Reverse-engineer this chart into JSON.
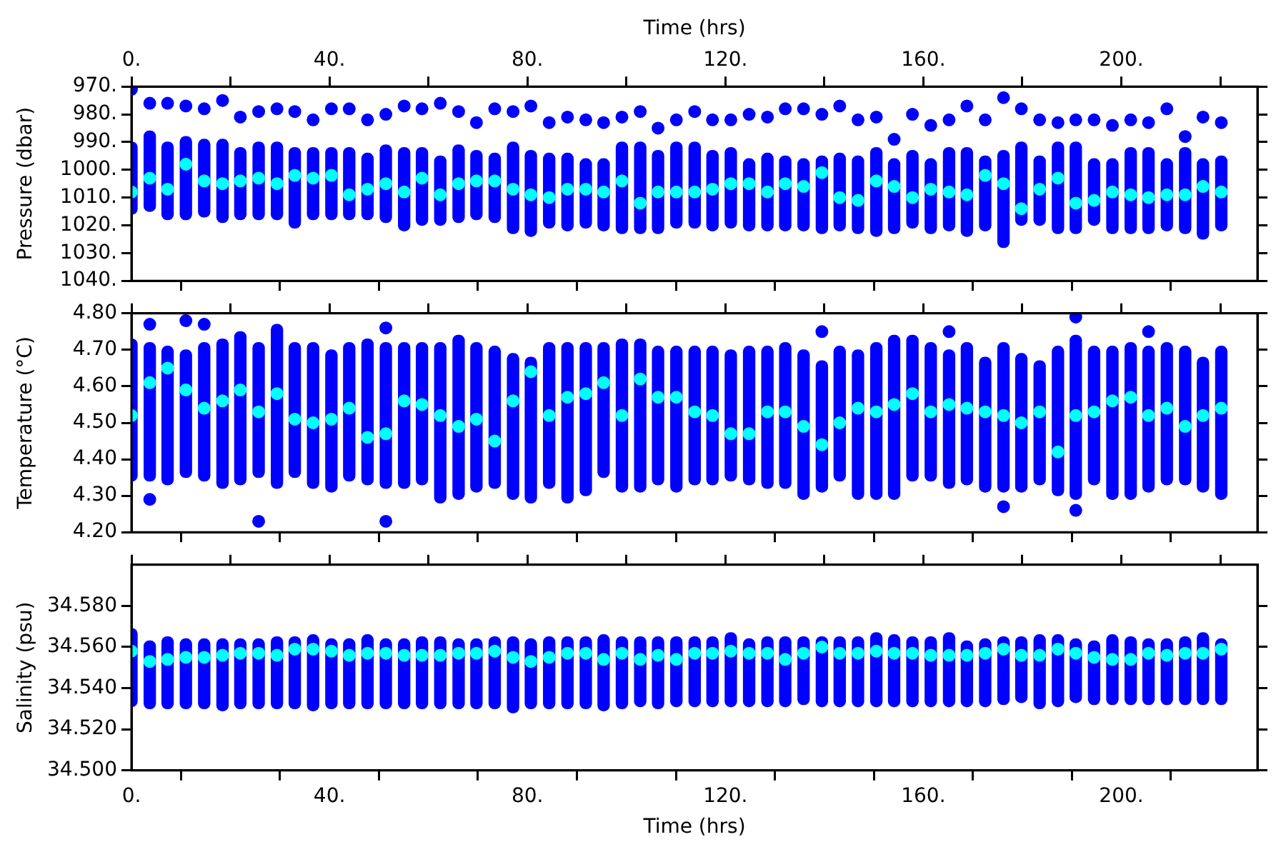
{
  "chart_data": [
    {
      "type": "scatter",
      "ylabel": "Pressure (dbar)",
      "x2label": "Time (hrs)",
      "marker": "circle",
      "tick_labels": "y",
      "xlim": [
        0,
        227.5
      ],
      "xticks": [
        {
          "value": 0,
          "label": null
        },
        {
          "value": 20,
          "label": null
        },
        {
          "value": 40,
          "label": null
        },
        {
          "value": 60,
          "label": null
        },
        {
          "value": 80,
          "label": null
        },
        {
          "value": 100,
          "label": null
        },
        {
          "value": 120,
          "label": null
        },
        {
          "value": 140,
          "label": null
        },
        {
          "value": 160,
          "label": null
        },
        {
          "value": 180,
          "label": null
        },
        {
          "value": 200,
          "label": null
        },
        {
          "value": 220,
          "label": null
        }
      ],
      "x2lim": [
        0,
        227.5
      ],
      "x2ticks": [
        {
          "value": 0,
          "label": "0."
        },
        {
          "value": 20,
          "label": null
        },
        {
          "value": 40,
          "label": "40."
        },
        {
          "value": 60,
          "label": null
        },
        {
          "value": 80,
          "label": "80."
        },
        {
          "value": 100,
          "label": null
        },
        {
          "value": 120,
          "label": "120."
        },
        {
          "value": 140,
          "label": null
        },
        {
          "value": 160,
          "label": "160."
        },
        {
          "value": 180,
          "label": null
        },
        {
          "value": 200,
          "label": "200."
        },
        {
          "value": 220,
          "label": null
        }
      ],
      "ylim": [
        1040,
        970
      ],
      "yticks": [
        {
          "value": 970,
          "label": "970."
        },
        {
          "value": 980,
          "label": "980."
        },
        {
          "value": 990,
          "label": "990."
        },
        {
          "value": 1000,
          "label": "1000."
        },
        {
          "value": 1010,
          "label": "1010."
        },
        {
          "value": 1020,
          "label": "1020."
        },
        {
          "value": 1030,
          "label": "1030."
        },
        {
          "value": 1040,
          "label": "1040."
        }
      ],
      "x": [
        0,
        3.7,
        7.3,
        11.0,
        14.7,
        18.4,
        22.0,
        25.7,
        29.4,
        33.0,
        36.7,
        40.4,
        44.0,
        47.7,
        51.4,
        55.1,
        58.7,
        62.4,
        66.1,
        69.7,
        73.4,
        77.1,
        80.7,
        84.4,
        88.1,
        91.8,
        95.4,
        99.1,
        102.8,
        106.4,
        110.1,
        113.8,
        117.4,
        121.1,
        124.8,
        128.5,
        132.1,
        135.8,
        139.5,
        143.1,
        146.8,
        150.5,
        154.1,
        157.8,
        161.5,
        165.2,
        168.8,
        172.5,
        176.2,
        179.8,
        183.5,
        187.2,
        190.8,
        194.5,
        198.2,
        201.9,
        205.5,
        209.2,
        212.9,
        216.5,
        220.2
      ],
      "series": [
        {
          "type": "bar",
          "color": "#0000ff",
          "base": [
            990,
            986,
            990,
            988,
            989,
            989,
            992,
            990,
            990,
            992,
            992,
            992,
            992,
            994,
            991,
            992,
            992,
            995,
            991,
            993,
            994,
            990,
            993,
            994,
            994,
            996,
            996,
            990,
            990,
            993,
            990,
            990,
            993,
            992,
            996,
            994,
            995,
            996,
            995,
            994,
            995,
            992,
            996,
            993,
            996,
            992,
            992,
            995,
            993,
            990,
            995,
            990,
            990,
            996,
            996,
            992,
            992,
            996,
            992,
            996,
            995
          ],
          "values": [
            26,
            29,
            28,
            30,
            28,
            30,
            26,
            28,
            28,
            29,
            26,
            26,
            26,
            24,
            28,
            30,
            28,
            25,
            28,
            25,
            25,
            33,
            31,
            27,
            28,
            25,
            26,
            33,
            33,
            30,
            31,
            31,
            29,
            29,
            26,
            28,
            27,
            26,
            28,
            28,
            28,
            32,
            27,
            28,
            27,
            30,
            32,
            27,
            35,
            30,
            25,
            33,
            33,
            24,
            27,
            31,
            31,
            26,
            31,
            29,
            27
          ]
        },
        {
          "type": "scatter",
          "color": "#0000ff",
          "values": [
            971,
            976,
            976,
            977,
            978,
            975,
            981,
            979,
            978,
            979,
            982,
            978,
            978,
            982,
            980,
            977,
            978,
            976,
            979,
            983,
            978,
            979,
            977,
            983,
            981,
            982,
            983,
            981,
            979,
            985,
            982,
            979,
            982,
            982,
            980,
            981,
            978,
            978,
            980,
            977,
            982,
            981,
            989,
            980,
            984,
            982,
            977,
            982,
            974,
            978,
            982,
            983,
            982,
            982,
            984,
            982,
            983,
            978,
            988,
            981,
            983
          ]
        },
        {
          "type": "scatter",
          "color": "#00ffff",
          "values": [
            1008,
            1003,
            1007,
            998,
            1004,
            1005,
            1004,
            1003,
            1005,
            1002,
            1003,
            1002,
            1009,
            1007,
            1005,
            1008,
            1003,
            1009,
            1005,
            1004,
            1004,
            1007,
            1009,
            1010,
            1007,
            1007,
            1008,
            1004,
            1012,
            1008,
            1008,
            1008,
            1007,
            1005,
            1005,
            1008,
            1005,
            1006,
            1001,
            1010,
            1011,
            1004,
            1006,
            1010,
            1007,
            1008,
            1009,
            1002,
            1005,
            1014,
            1007,
            1003,
            1012,
            1011,
            1008,
            1009,
            1010,
            1009,
            1009,
            1006,
            1008
          ]
        }
      ]
    },
    {
      "type": "scatter",
      "ylabel": "Temperature (°C)",
      "marker": "circle",
      "tick_labels": "y",
      "xlim": [
        0,
        227.5
      ],
      "xticks": [
        {
          "value": 0,
          "label": null
        },
        {
          "value": 20,
          "label": null
        },
        {
          "value": 40,
          "label": null
        },
        {
          "value": 60,
          "label": null
        },
        {
          "value": 80,
          "label": null
        },
        {
          "value": 100,
          "label": null
        },
        {
          "value": 120,
          "label": null
        },
        {
          "value": 140,
          "label": null
        },
        {
          "value": 160,
          "label": null
        },
        {
          "value": 180,
          "label": null
        },
        {
          "value": 200,
          "label": null
        },
        {
          "value": 220,
          "label": null
        }
      ],
      "ylim": [
        4.2,
        4.8
      ],
      "yticks": [
        {
          "value": 4.2,
          "label": "4.20"
        },
        {
          "value": 4.3,
          "label": "4.30"
        },
        {
          "value": 4.4,
          "label": "4.40"
        },
        {
          "value": 4.5,
          "label": "4.50"
        },
        {
          "value": 4.6,
          "label": "4.60"
        },
        {
          "value": 4.7,
          "label": "4.70"
        },
        {
          "value": 4.8,
          "label": "4.80"
        }
      ],
      "x": [
        0,
        3.7,
        7.3,
        11.0,
        14.7,
        18.4,
        22.0,
        25.7,
        29.4,
        33.0,
        36.7,
        40.4,
        44.0,
        47.7,
        51.4,
        55.1,
        58.7,
        62.4,
        66.1,
        69.7,
        73.4,
        77.1,
        80.7,
        84.4,
        88.1,
        91.8,
        95.4,
        99.1,
        102.8,
        106.4,
        110.1,
        113.8,
        117.4,
        121.1,
        124.8,
        128.5,
        132.1,
        135.8,
        139.5,
        143.1,
        146.8,
        150.5,
        154.1,
        157.8,
        161.5,
        165.2,
        168.8,
        172.5,
        176.2,
        179.8,
        183.5,
        187.2,
        190.8,
        194.5,
        198.2,
        201.9,
        205.5,
        209.2,
        212.9,
        216.5,
        220.2
      ],
      "series": [
        {
          "type": "bar",
          "color": "#0000ff",
          "base": [
            4.34,
            4.34,
            4.33,
            4.35,
            4.34,
            4.32,
            4.33,
            4.35,
            4.32,
            4.35,
            4.32,
            4.31,
            4.34,
            4.33,
            4.32,
            4.32,
            4.33,
            4.28,
            4.29,
            4.31,
            4.32,
            4.29,
            4.28,
            4.32,
            4.28,
            4.3,
            4.35,
            4.31,
            4.31,
            4.33,
            4.31,
            4.33,
            4.33,
            4.34,
            4.33,
            4.32,
            4.32,
            4.29,
            4.31,
            4.34,
            4.29,
            4.29,
            4.29,
            4.34,
            4.34,
            4.32,
            4.33,
            4.31,
            4.31,
            4.31,
            4.33,
            4.3,
            4.29,
            4.33,
            4.29,
            4.29,
            4.31,
            4.33,
            4.33,
            4.31,
            4.29
          ],
          "values": [
            0.39,
            0.38,
            0.38,
            0.35,
            0.38,
            0.41,
            0.42,
            0.37,
            0.45,
            0.37,
            0.4,
            0.39,
            0.38,
            0.4,
            0.4,
            0.4,
            0.39,
            0.44,
            0.45,
            0.41,
            0.39,
            0.4,
            0.4,
            0.4,
            0.44,
            0.42,
            0.37,
            0.42,
            0.42,
            0.38,
            0.4,
            0.38,
            0.38,
            0.36,
            0.38,
            0.39,
            0.4,
            0.41,
            0.36,
            0.37,
            0.41,
            0.43,
            0.45,
            0.4,
            0.38,
            0.38,
            0.39,
            0.37,
            0.41,
            0.38,
            0.34,
            0.41,
            0.45,
            0.38,
            0.42,
            0.43,
            0.4,
            0.39,
            0.38,
            0.37,
            0.42
          ]
        },
        {
          "type": "scatter",
          "color": "#0000ff",
          "x": [
            3.7,
            3.7,
            11.0,
            14.7,
            25.7,
            51.4,
            51.4,
            139.5,
            165.2,
            176.2,
            190.8,
            190.8,
            205.5
          ],
          "values": [
            4.77,
            4.29,
            4.78,
            4.77,
            4.23,
            4.76,
            4.23,
            4.75,
            4.75,
            4.27,
            4.79,
            4.26,
            4.75
          ]
        },
        {
          "type": "scatter",
          "color": "#00ffff",
          "values": [
            4.52,
            4.61,
            4.65,
            4.59,
            4.54,
            4.56,
            4.59,
            4.53,
            4.58,
            4.51,
            4.5,
            4.51,
            4.54,
            4.46,
            4.47,
            4.56,
            4.55,
            4.52,
            4.49,
            4.51,
            4.45,
            4.56,
            4.64,
            4.52,
            4.57,
            4.58,
            4.61,
            4.52,
            4.62,
            4.57,
            4.57,
            4.53,
            4.52,
            4.47,
            4.47,
            4.53,
            4.53,
            4.49,
            4.44,
            4.5,
            4.54,
            4.53,
            4.55,
            4.58,
            4.53,
            4.55,
            4.54,
            4.53,
            4.52,
            4.5,
            4.53,
            4.42,
            4.52,
            4.53,
            4.56,
            4.57,
            4.52,
            4.54,
            4.49,
            4.52,
            4.54
          ]
        }
      ]
    },
    {
      "type": "scatter",
      "xlabel": "Time (hrs)",
      "ylabel": "Salinity (psu)",
      "marker": "circle",
      "xlim": [
        0,
        227.5
      ],
      "xticks": [
        {
          "value": 0,
          "label": "0."
        },
        {
          "value": 20,
          "label": null
        },
        {
          "value": 40,
          "label": "40."
        },
        {
          "value": 60,
          "label": null
        },
        {
          "value": 80,
          "label": "80."
        },
        {
          "value": 100,
          "label": null
        },
        {
          "value": 120,
          "label": "120."
        },
        {
          "value": 140,
          "label": null
        },
        {
          "value": 160,
          "label": "160."
        },
        {
          "value": 180,
          "label": null
        },
        {
          "value": 200,
          "label": "200."
        },
        {
          "value": 220,
          "label": null
        }
      ],
      "ylim": [
        34.5,
        34.6
      ],
      "yticks": [
        {
          "value": 34.5,
          "label": "34.500"
        },
        {
          "value": 34.52,
          "label": "34.520"
        },
        {
          "value": 34.54,
          "label": "34.540"
        },
        {
          "value": 34.56,
          "label": "34.560"
        },
        {
          "value": 34.58,
          "label": "34.580"
        }
      ],
      "x": [
        0,
        3.7,
        7.3,
        11.0,
        14.7,
        18.4,
        22.0,
        25.7,
        29.4,
        33.0,
        36.7,
        40.4,
        44.0,
        47.7,
        51.4,
        55.1,
        58.7,
        62.4,
        66.1,
        69.7,
        73.4,
        77.1,
        80.7,
        84.4,
        88.1,
        91.8,
        95.4,
        99.1,
        102.8,
        106.4,
        110.1,
        113.8,
        117.4,
        121.1,
        124.8,
        128.5,
        132.1,
        135.8,
        139.5,
        143.1,
        146.8,
        150.5,
        154.1,
        157.8,
        161.5,
        165.2,
        168.8,
        172.5,
        176.2,
        179.8,
        183.5,
        187.2,
        190.8,
        194.5,
        198.2,
        201.9,
        205.5,
        209.2,
        212.9,
        216.5,
        220.2
      ],
      "series": [
        {
          "type": "bar",
          "color": "#0000ff",
          "base": [
            34.531,
            34.53,
            34.53,
            34.53,
            34.53,
            34.529,
            34.53,
            34.53,
            34.53,
            34.53,
            34.529,
            34.53,
            34.53,
            34.53,
            34.53,
            34.53,
            34.53,
            34.53,
            34.53,
            34.53,
            34.53,
            34.528,
            34.53,
            34.53,
            34.53,
            34.53,
            34.529,
            34.53,
            34.531,
            34.53,
            34.531,
            34.531,
            34.531,
            34.531,
            34.531,
            34.531,
            34.531,
            34.532,
            34.531,
            34.531,
            34.531,
            34.531,
            34.531,
            34.531,
            34.531,
            34.531,
            34.531,
            34.531,
            34.532,
            34.533,
            34.53,
            34.531,
            34.533,
            34.532,
            34.532,
            34.532,
            34.532,
            34.532,
            34.532,
            34.532,
            34.532
          ],
          "values": [
            0.038,
            0.033,
            0.035,
            0.034,
            0.034,
            0.035,
            0.034,
            0.034,
            0.035,
            0.035,
            0.037,
            0.034,
            0.034,
            0.036,
            0.034,
            0.034,
            0.035,
            0.035,
            0.034,
            0.034,
            0.035,
            0.037,
            0.034,
            0.035,
            0.035,
            0.035,
            0.037,
            0.035,
            0.034,
            0.035,
            0.034,
            0.034,
            0.034,
            0.036,
            0.033,
            0.034,
            0.034,
            0.033,
            0.034,
            0.034,
            0.034,
            0.036,
            0.035,
            0.034,
            0.034,
            0.036,
            0.032,
            0.033,
            0.033,
            0.032,
            0.036,
            0.035,
            0.031,
            0.031,
            0.034,
            0.033,
            0.032,
            0.032,
            0.033,
            0.035,
            0.032
          ]
        },
        {
          "type": "scatter",
          "color": "#00ffff",
          "values": [
            34.558,
            34.553,
            34.554,
            34.555,
            34.555,
            34.556,
            34.557,
            34.557,
            34.556,
            34.559,
            34.559,
            34.558,
            34.556,
            34.557,
            34.557,
            34.556,
            34.556,
            34.556,
            34.557,
            34.557,
            34.558,
            34.555,
            34.553,
            34.555,
            34.557,
            34.557,
            34.554,
            34.557,
            34.554,
            34.556,
            34.554,
            34.557,
            34.557,
            34.558,
            34.557,
            34.557,
            34.554,
            34.557,
            34.56,
            34.557,
            34.557,
            34.558,
            34.557,
            34.557,
            34.556,
            34.556,
            34.556,
            34.557,
            34.559,
            34.556,
            34.556,
            34.559,
            34.557,
            34.555,
            34.554,
            34.554,
            34.557,
            34.556,
            34.557,
            34.557,
            34.559
          ]
        }
      ]
    }
  ]
}
